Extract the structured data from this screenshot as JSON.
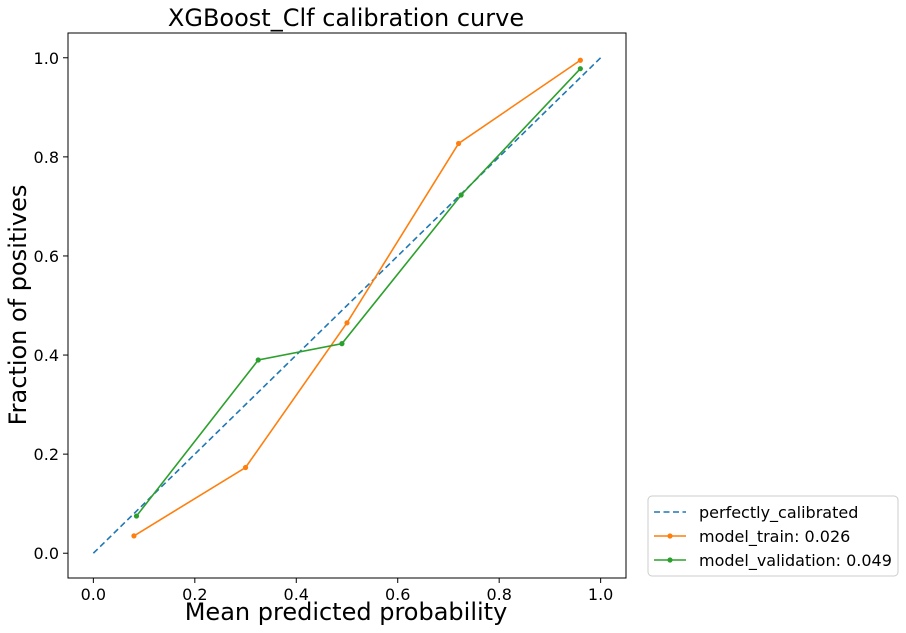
{
  "chart_data": {
    "type": "line",
    "title": "XGBoost_Clf calibration curve",
    "xlabel": "Mean predicted probability",
    "ylabel": "Fraction of positives",
    "xlim": [
      -0.05,
      1.05
    ],
    "ylim": [
      -0.05,
      1.05
    ],
    "xticks": [
      0.0,
      0.2,
      0.4,
      0.6,
      0.8,
      1.0
    ],
    "xtick_labels": [
      "0.0",
      "0.2",
      "0.4",
      "0.6",
      "0.8",
      "1.0"
    ],
    "yticks": [
      0.0,
      0.2,
      0.4,
      0.6,
      0.8,
      1.0
    ],
    "ytick_labels": [
      "0.0",
      "0.2",
      "0.4",
      "0.6",
      "0.8",
      "1.0"
    ],
    "grid": false,
    "legend_position": "outside-lower-right",
    "series": [
      {
        "name": "perfectly_calibrated",
        "style": "dashed",
        "marker": "none",
        "color": "#1f77b4",
        "x": [
          0.0,
          1.0
        ],
        "y": [
          0.0,
          1.0
        ]
      },
      {
        "name": "model_train: 0.026",
        "style": "solid",
        "marker": "dot",
        "color": "#ff7f0e",
        "x": [
          0.08,
          0.3,
          0.5,
          0.72,
          0.96
        ],
        "y": [
          0.035,
          0.173,
          0.465,
          0.827,
          0.995
        ]
      },
      {
        "name": "model_validation: 0.049",
        "style": "solid",
        "marker": "dot",
        "color": "#2ca02c",
        "x": [
          0.085,
          0.325,
          0.49,
          0.725,
          0.96
        ],
        "y": [
          0.075,
          0.39,
          0.423,
          0.723,
          0.978
        ]
      }
    ]
  }
}
